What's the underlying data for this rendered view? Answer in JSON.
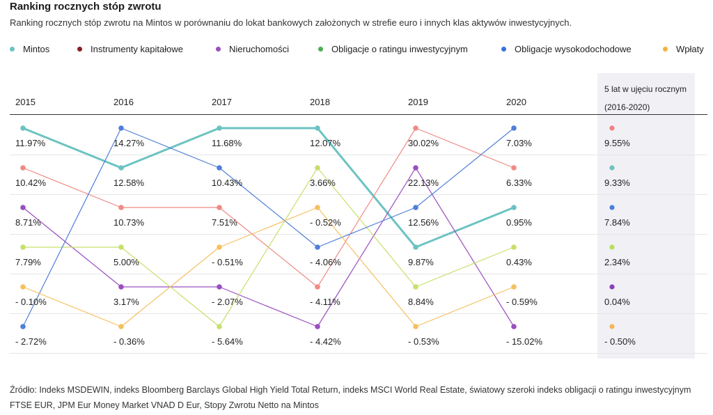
{
  "title": "Ranking rocznych stóp zwrotu",
  "subtitle": "Ranking rocznych stóp zwrotu na Mintos w porównaniu do lokat bankowych założonych w strefie euro i innych klas aktywów inwestycyjnych.",
  "legend": [
    {
      "name": "Mintos",
      "color": "#6cc3c1"
    },
    {
      "name": "Instrumenty kapitałowe",
      "color": "#8b1e1e"
    },
    {
      "name": "Nieruchomości",
      "color": "#9a4fc0"
    },
    {
      "name": "Obligacje o ratingu inwestycyjnym",
      "color": "#4caf50"
    },
    {
      "name": "Obligacje wysokodochodowe",
      "color": "#3a6fd8"
    },
    {
      "name": "Wpłaty",
      "color": "#f2b43c"
    }
  ],
  "avg_header": {
    "line1": "5 lat w ujęciu rocznym",
    "line2": "(2016-2020)"
  },
  "source": "Źródło: Indeks MSDEWIN, indeks Bloomberg Barclays Global High Yield Total Return, indeks MSCI World Real Estate, światowy szeroki indeks obligacji o ratingu inwestycyjnym FTSE EUR, JPM Eur Money Market VNAD D Eur, Stopy Zwrotu Netto na Mintos",
  "chart_data": {
    "type": "table",
    "years": [
      "2015",
      "2016",
      "2017",
      "2018",
      "2019",
      "2020"
    ],
    "rows": [
      [
        "11.97%",
        "14.27%",
        "11.68%",
        "12.07%",
        "30.02%",
        "7.03%"
      ],
      [
        "10.42%",
        "12.58%",
        "10.43%",
        "3.66%",
        "22.13%",
        "6.33%"
      ],
      [
        "8.71%",
        "10.73%",
        "7.51%",
        "- 0.52%",
        "12.56%",
        "0.95%"
      ],
      [
        "7.79%",
        "5.00%",
        "- 0.51%",
        "- 4.06%",
        "9.87%",
        "0.43%"
      ],
      [
        "- 0.10%",
        "3.17%",
        "- 2.07%",
        "- 4.11%",
        "8.84%",
        "- 0.59%"
      ],
      [
        "- 2.72%",
        "- 0.36%",
        "- 5.64%",
        "- 4.42%",
        "- 0.53%",
        "- 15.02%"
      ]
    ],
    "five_year": [
      "9.55%",
      "9.33%",
      "7.84%",
      "2.34%",
      "0.04%",
      "- 0.50%"
    ],
    "five_year_colors": [
      "#f08080",
      "#6cc3c1",
      "#4a7fe0",
      "#b5e05a",
      "#8a3fb8",
      "#f5b55a"
    ],
    "series": [
      {
        "name": "Mintos",
        "color": "#6cc3c1",
        "ranks": [
          0,
          1,
          0,
          0,
          3,
          2
        ],
        "emphasis": true
      },
      {
        "name": "Instrumenty kapitałowe",
        "color": "#f08a84",
        "ranks": [
          1,
          2,
          2,
          4,
          0,
          1
        ]
      },
      {
        "name": "Nieruchomości",
        "color": "#9a4fc0",
        "ranks": [
          2,
          4,
          4,
          5,
          1,
          5
        ]
      },
      {
        "name": "Obligacje o ratingu inwestycyjnym",
        "color": "#c6e06a",
        "ranks": [
          3,
          3,
          5,
          1,
          4,
          3
        ]
      },
      {
        "name": "Obligacje wysokodochodowe",
        "color": "#4f7fd8",
        "ranks": [
          5,
          0,
          1,
          3,
          2,
          0
        ]
      },
      {
        "name": "Wpłaty",
        "color": "#f5c060",
        "ranks": [
          4,
          5,
          3,
          2,
          5,
          4
        ]
      }
    ]
  }
}
